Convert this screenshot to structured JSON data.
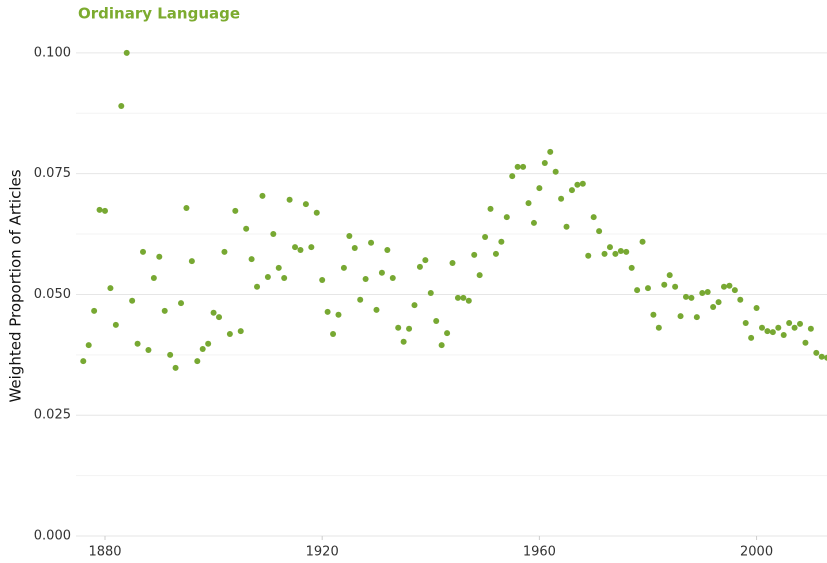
{
  "chart_data": {
    "type": "scatter",
    "title": "Ordinary Language",
    "title_color": "#7cab2f",
    "y_label": "Weighted Proportion of Articles",
    "color": "#77a832",
    "x": [
      1876,
      1877,
      1878,
      1879,
      1880,
      1881,
      1882,
      1883,
      1884,
      1885,
      1886,
      1887,
      1888,
      1889,
      1890,
      1891,
      1892,
      1893,
      1894,
      1895,
      1896,
      1897,
      1898,
      1899,
      1900,
      1901,
      1902,
      1903,
      1904,
      1905,
      1906,
      1907,
      1908,
      1909,
      1910,
      1911,
      1912,
      1913,
      1914,
      1915,
      1916,
      1917,
      1918,
      1919,
      1920,
      1921,
      1922,
      1923,
      1924,
      1925,
      1926,
      1927,
      1928,
      1929,
      1930,
      1931,
      1932,
      1933,
      1934,
      1935,
      1936,
      1937,
      1938,
      1939,
      1940,
      1941,
      1942,
      1943,
      1944,
      1945,
      1946,
      1947,
      1948,
      1949,
      1950,
      1951,
      1952,
      1953,
      1954,
      1955,
      1956,
      1957,
      1958,
      1959,
      1960,
      1961,
      1962,
      1963,
      1964,
      1965,
      1966,
      1967,
      1968,
      1969,
      1970,
      1971,
      1972,
      1973,
      1974,
      1975,
      1976,
      1977,
      1978,
      1979,
      1980,
      1981,
      1982,
      1983,
      1984,
      1985,
      1986,
      1987,
      1988,
      1989,
      1990,
      1991,
      1992,
      1993,
      1994,
      1995,
      1996,
      1997,
      1998,
      1999,
      2000,
      2001,
      2002,
      2003,
      2004,
      2005,
      2006,
      2007,
      2008,
      2009,
      2010,
      2011,
      2012,
      2013
    ],
    "values": [
      0.0362,
      0.0395,
      0.0466,
      0.0675,
      0.0673,
      0.0513,
      0.0437,
      0.089,
      0.1,
      0.0487,
      0.0398,
      0.0588,
      0.0385,
      0.0534,
      0.0578,
      0.0466,
      0.0375,
      0.0348,
      0.0482,
      0.0679,
      0.0569,
      0.0362,
      0.0387,
      0.0398,
      0.0462,
      0.0453,
      0.0588,
      0.0418,
      0.0673,
      0.0424,
      0.0636,
      0.0573,
      0.0516,
      0.0704,
      0.0536,
      0.0625,
      0.0555,
      0.0534,
      0.0696,
      0.0598,
      0.0592,
      0.0687,
      0.0598,
      0.0669,
      0.053,
      0.0464,
      0.0418,
      0.0458,
      0.0555,
      0.0621,
      0.0596,
      0.0489,
      0.0532,
      0.0607,
      0.0468,
      0.0545,
      0.0592,
      0.0534,
      0.0431,
      0.0402,
      0.0429,
      0.0478,
      0.0557,
      0.0571,
      0.0503,
      0.0445,
      0.0395,
      0.042,
      0.0565,
      0.0493,
      0.0493,
      0.0487,
      0.0582,
      0.054,
      0.0619,
      0.0677,
      0.0584,
      0.0609,
      0.066,
      0.0745,
      0.0764,
      0.0764,
      0.0689,
      0.0648,
      0.072,
      0.0772,
      0.0795,
      0.0754,
      0.0698,
      0.064,
      0.0716,
      0.0727,
      0.0729,
      0.058,
      0.066,
      0.0631,
      0.0584,
      0.0598,
      0.0584,
      0.059,
      0.0588,
      0.0555,
      0.0509,
      0.0609,
      0.0513,
      0.0458,
      0.0431,
      0.052,
      0.054,
      0.0516,
      0.0455,
      0.0495,
      0.0493,
      0.0453,
      0.0503,
      0.0505,
      0.0474,
      0.0484,
      0.0516,
      0.0518,
      0.0509,
      0.0489,
      0.0441,
      0.041,
      0.0472,
      0.0431,
      0.0424,
      0.0422,
      0.0431,
      0.0416,
      0.0441,
      0.0431,
      0.0439,
      0.04,
      0.0429,
      0.0379,
      0.0371,
      0.0369
    ],
    "xlim": [
      1874.66,
      2012.97
    ],
    "xticks": [
      1880,
      1920,
      1960,
      2000
    ],
    "ylim": [
      0,
      0.1037
    ],
    "yticks": [
      {
        "value": 0,
        "label": "0.000"
      },
      {
        "value": 0.025,
        "label": "0.025"
      },
      {
        "value": 0.05,
        "label": "0.050"
      },
      {
        "value": 0.075,
        "label": "0.075"
      },
      {
        "value": 0.1,
        "label": "0.100"
      }
    ],
    "y_minor_ticks": [
      0.0125,
      0.0375,
      0.0625,
      0.0875
    ],
    "grid": true
  }
}
